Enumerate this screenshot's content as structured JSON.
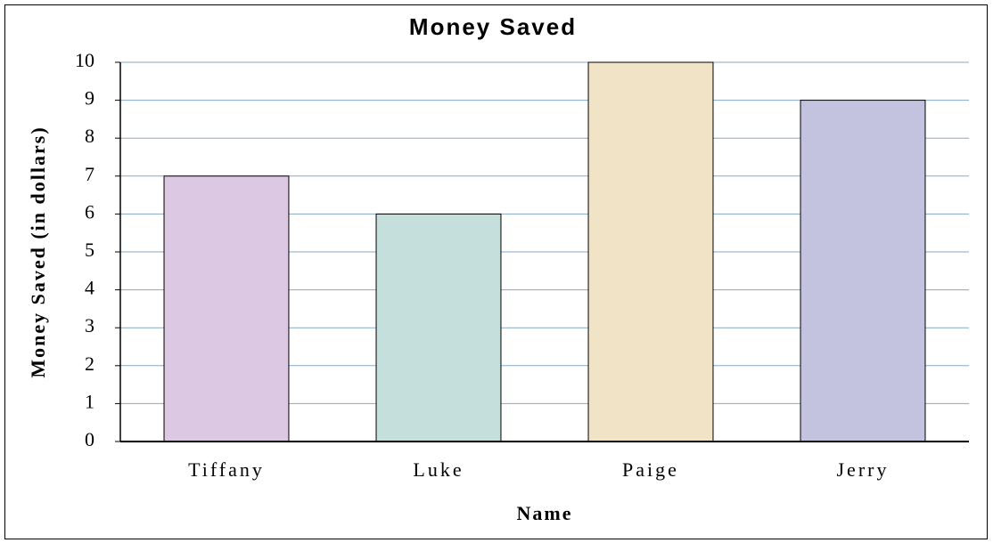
{
  "chart_data": {
    "type": "bar",
    "title": "Money Saved",
    "x_label": "Name",
    "y_label": "Money Saved (in dollars)",
    "categories": [
      "Tiffany",
      "Luke",
      "Paige",
      "Jerry"
    ],
    "values": [
      7,
      6,
      10,
      9
    ],
    "colors": [
      "#dcc8e2",
      "#c4dfdc",
      "#f1e4c6",
      "#c3c3e0"
    ],
    "ylim": [
      0,
      10
    ],
    "yticks": [
      0,
      1,
      2,
      3,
      4,
      5,
      6,
      7,
      8,
      9,
      10
    ],
    "grid": true
  }
}
